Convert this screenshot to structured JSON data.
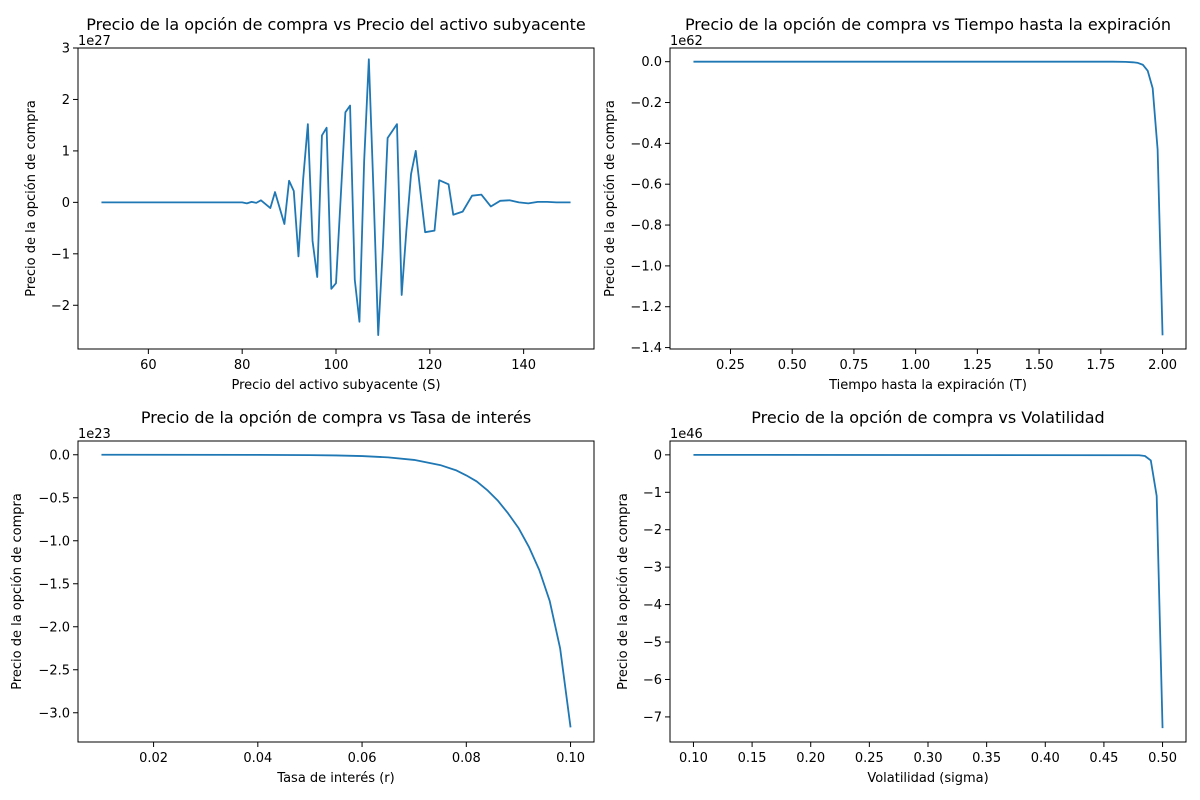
{
  "chart_data": [
    {
      "type": "line",
      "title": "Precio de la opción de compra vs Precio del activo subyacente",
      "xlabel": "Precio del activo subyacente (S)",
      "ylabel": "Precio de la opción de compra",
      "y_multiplier": "1e27",
      "xlim": [
        45,
        155
      ],
      "ylim": [
        -2.85,
        3.0
      ],
      "xticks": [
        60,
        80,
        100,
        120,
        140
      ],
      "xtick_labels": [
        "60",
        "80",
        "100",
        "120",
        "140"
      ],
      "yticks": [
        -2,
        -1,
        0,
        1,
        2,
        3
      ],
      "ytick_labels": [
        "−2",
        "−1",
        "0",
        "1",
        "2",
        "3"
      ],
      "grid": false,
      "series": [
        {
          "x": [
            50,
            80,
            81,
            82,
            83,
            84,
            86,
            87,
            89,
            90,
            91,
            92,
            93,
            94,
            95,
            96,
            97,
            98,
            99,
            100,
            102,
            103,
            104,
            105,
            106,
            107,
            108,
            109,
            110,
            111,
            113,
            114,
            115,
            116,
            117,
            118,
            119,
            121,
            122,
            124,
            125,
            127,
            129,
            131,
            133,
            135,
            137,
            139,
            141,
            143,
            145,
            147,
            150
          ],
          "y": [
            0,
            0,
            -0.02,
            0.01,
            -0.01,
            0.04,
            -0.11,
            0.2,
            -0.42,
            0.42,
            0.22,
            -1.05,
            0.45,
            1.52,
            -0.75,
            -1.45,
            1.3,
            1.45,
            -1.68,
            -1.57,
            1.75,
            1.88,
            -1.5,
            -2.32,
            0.8,
            2.78,
            0.2,
            -2.58,
            -0.85,
            1.25,
            1.52,
            -1.8,
            -0.55,
            0.55,
            1.0,
            0.2,
            -0.58,
            -0.55,
            0.43,
            0.35,
            -0.24,
            -0.18,
            0.13,
            0.15,
            -0.08,
            0.03,
            0.04,
            0.0,
            -0.02,
            0.01,
            0.01,
            0.0,
            0.0
          ]
        }
      ]
    },
    {
      "type": "line",
      "title": "Precio de la opción de compra vs Tiempo hasta la expiración",
      "xlabel": "Tiempo hasta la expiración (T)",
      "ylabel": "Precio de la opción de compra",
      "y_multiplier": "1e62",
      "xlim": [
        0.005,
        2.095
      ],
      "ylim": [
        -1.407,
        0.067
      ],
      "xticks": [
        0.25,
        0.5,
        0.75,
        1.0,
        1.25,
        1.5,
        1.75,
        2.0
      ],
      "xtick_labels": [
        "0.25",
        "0.50",
        "0.75",
        "1.00",
        "1.25",
        "1.50",
        "1.75",
        "2.00"
      ],
      "yticks": [
        -1.4,
        -1.2,
        -1.0,
        -0.8,
        -0.6,
        -0.4,
        -0.2,
        0.0
      ],
      "ytick_labels": [
        "−1.4",
        "−1.2",
        "−1.0",
        "−0.8",
        "−0.6",
        "−0.4",
        "−0.2",
        "0.0"
      ],
      "grid": false,
      "series": [
        {
          "x": [
            0.1,
            1.8,
            1.85,
            1.88,
            1.9,
            1.92,
            1.94,
            1.96,
            1.98,
            2.0
          ],
          "y": [
            0,
            0,
            -0.001,
            -0.003,
            -0.006,
            -0.015,
            -0.045,
            -0.13,
            -0.43,
            -1.34
          ]
        }
      ]
    },
    {
      "type": "line",
      "title": "Precio de la opción de compra vs Tasa de interés",
      "xlabel": "Tasa de interés (r)",
      "ylabel": "Precio de la opción de compra",
      "y_multiplier": "1e23",
      "xlim": [
        0.0055,
        0.1045
      ],
      "ylim": [
        -3.34,
        0.16
      ],
      "xticks": [
        0.02,
        0.04,
        0.06,
        0.08,
        0.1
      ],
      "xtick_labels": [
        "0.02",
        "0.04",
        "0.06",
        "0.08",
        "0.10"
      ],
      "yticks": [
        -3.0,
        -2.5,
        -2.0,
        -1.5,
        -1.0,
        -0.5,
        0.0
      ],
      "ytick_labels": [
        "−3.0",
        "−2.5",
        "−2.0",
        "−1.5",
        "−1.0",
        "−0.5",
        "0.0"
      ],
      "grid": false,
      "series": [
        {
          "x": [
            0.01,
            0.04,
            0.05,
            0.055,
            0.06,
            0.065,
            0.07,
            0.075,
            0.078,
            0.08,
            0.082,
            0.084,
            0.086,
            0.088,
            0.09,
            0.092,
            0.094,
            0.096,
            0.098,
            0.1
          ],
          "y": [
            0,
            -0.001,
            -0.004,
            -0.008,
            -0.015,
            -0.03,
            -0.06,
            -0.12,
            -0.18,
            -0.24,
            -0.31,
            -0.41,
            -0.53,
            -0.68,
            -0.85,
            -1.07,
            -1.34,
            -1.7,
            -2.25,
            -3.17
          ]
        }
      ]
    },
    {
      "type": "line",
      "title": "Precio de la opción de compra vs Volatilidad",
      "xlabel": "Volatilidad (sigma)",
      "ylabel": "Precio de la opción de compra",
      "y_multiplier": "1e46",
      "xlim": [
        0.08,
        0.52
      ],
      "ylim": [
        -7.67,
        0.37
      ],
      "xticks": [
        0.1,
        0.15,
        0.2,
        0.25,
        0.3,
        0.35,
        0.4,
        0.45,
        0.5
      ],
      "xtick_labels": [
        "0.10",
        "0.15",
        "0.20",
        "0.25",
        "0.30",
        "0.35",
        "0.40",
        "0.45",
        "0.50"
      ],
      "yticks": [
        -7,
        -6,
        -5,
        -4,
        -3,
        -2,
        -1,
        0
      ],
      "ytick_labels": [
        "−7",
        "−6",
        "−5",
        "−4",
        "−3",
        "−2",
        "−1",
        "0"
      ],
      "grid": false,
      "series": [
        {
          "x": [
            0.1,
            0.48,
            0.485,
            0.49,
            0.495,
            0.5
          ],
          "y": [
            0,
            -0.01,
            -0.03,
            -0.15,
            -1.1,
            -7.3
          ]
        }
      ]
    }
  ]
}
